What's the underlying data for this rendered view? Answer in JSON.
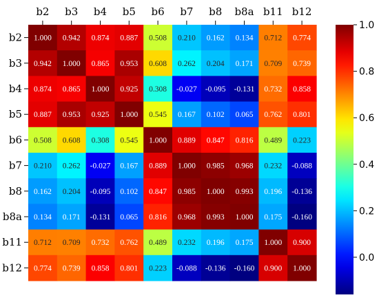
{
  "chart_data": {
    "type": "heatmap",
    "title": "",
    "xlabel": "",
    "ylabel": "",
    "x_labels": [
      "b2",
      "b3",
      "b4",
      "b5",
      "b6",
      "b7",
      "b8",
      "b8a",
      "b11",
      "b12"
    ],
    "y_labels": [
      "b2",
      "b3",
      "b4",
      "b5",
      "b6",
      "b7",
      "b8",
      "b8a",
      "b11",
      "b12"
    ],
    "values": [
      [
        1.0,
        0.942,
        0.874,
        0.887,
        0.508,
        0.21,
        0.162,
        0.134,
        0.712,
        0.774
      ],
      [
        0.942,
        1.0,
        0.865,
        0.953,
        0.608,
        0.262,
        0.204,
        0.171,
        0.709,
        0.739
      ],
      [
        0.874,
        0.865,
        1.0,
        0.925,
        0.308,
        -0.027,
        -0.095,
        -0.131,
        0.732,
        0.858
      ],
      [
        0.887,
        0.953,
        0.925,
        1.0,
        0.545,
        0.167,
        0.102,
        0.065,
        0.762,
        0.801
      ],
      [
        0.508,
        0.608,
        0.308,
        0.545,
        1.0,
        0.889,
        0.847,
        0.816,
        0.489,
        0.223
      ],
      [
        0.21,
        0.262,
        -0.027,
        0.167,
        0.889,
        1.0,
        0.985,
        0.968,
        0.232,
        -0.088
      ],
      [
        0.162,
        0.204,
        -0.095,
        0.102,
        0.847,
        0.985,
        1.0,
        0.993,
        0.196,
        -0.136
      ],
      [
        0.134,
        0.171,
        -0.131,
        0.065,
        0.816,
        0.968,
        0.993,
        1.0,
        0.175,
        -0.16
      ],
      [
        0.712,
        0.709,
        0.732,
        0.762,
        0.489,
        0.232,
        0.196,
        0.175,
        1.0,
        0.9
      ],
      [
        0.774,
        0.739,
        0.858,
        0.801,
        0.223,
        -0.088,
        -0.136,
        -0.16,
        0.9,
        1.0
      ]
    ],
    "value_format": "3 decimals",
    "colormap": "jet",
    "vmin": -0.16,
    "vmax": 1.0,
    "x_tick_position": "top",
    "colorbar": {
      "position": "right",
      "ticks": [
        0.0,
        0.2,
        0.4,
        0.6,
        0.8,
        1.0
      ],
      "tick_labels": [
        "0.0",
        "0.2",
        "0.4",
        "0.6",
        "0.8",
        "1.0"
      ]
    },
    "grid": false,
    "legend": "none"
  }
}
